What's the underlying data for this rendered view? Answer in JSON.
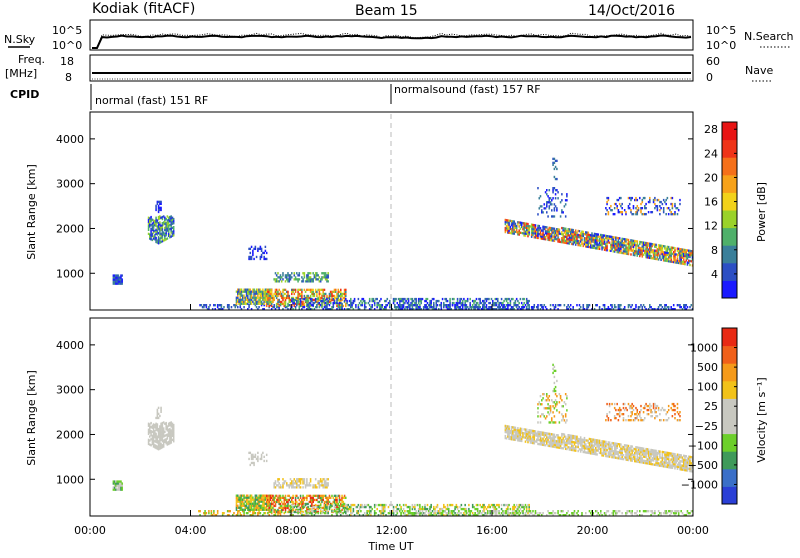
{
  "header": {
    "title": "Kodiak (fitACF)",
    "beam": "Beam 15",
    "date": "14/Oct/2016"
  },
  "noise_panel": {
    "left_label": "N.Sky",
    "left_ticks": [
      "10^5",
      "10^0"
    ],
    "right_label": "N.Search",
    "right_ticks": [
      "10^5",
      "10^0"
    ]
  },
  "freq_panel": {
    "left_label_1": "Freq.",
    "left_label_2": "[MHz]",
    "left_ticks": [
      "18",
      "8"
    ],
    "right_label": "Nave",
    "right_ticks": [
      "60",
      "0"
    ]
  },
  "cpid": {
    "label": "CPID",
    "segments": [
      {
        "text": "normal (fast) 151 RF",
        "start_hour": 0
      },
      {
        "text": "normalsound (fast) 157 RF",
        "start_hour": 12
      }
    ]
  },
  "chart_data": [
    {
      "type": "heatmap",
      "name": "power",
      "ylabel": "Slant Range [km]",
      "xlabel": "",
      "ylim": [
        180,
        4600
      ],
      "yticks": [
        "1000",
        "2000",
        "3000",
        "4000"
      ],
      "colorbar_label": "Power [dB]",
      "colorbar_ticks": [
        "4",
        "8",
        "12",
        "16",
        "20",
        "24",
        "28"
      ],
      "colors": [
        "#1a1aff",
        "#2c4fc4",
        "#3a7f9a",
        "#4fb06a",
        "#9ad22a",
        "#f2d21a",
        "#f7a21a",
        "#f5701a",
        "#ef3418",
        "#e81414"
      ]
    },
    {
      "type": "heatmap",
      "name": "velocity",
      "ylabel": "Slant Range [km]",
      "xlabel": "Time UT",
      "ylim": [
        180,
        4600
      ],
      "yticks": [
        "1000",
        "2000",
        "3000",
        "4000"
      ],
      "colorbar_label": "Velocity [m s⁻¹]",
      "colorbar_ticks": [
        "1000",
        "500",
        "100",
        "25",
        "−25",
        "−100",
        "−500",
        "−1000"
      ],
      "colors": [
        "#2a3fd6",
        "#3a6fc8",
        "#3f9a5a",
        "#6ccf2a",
        "#c8c8c0",
        "#c8c8c0",
        "#f2c21a",
        "#f59a1a",
        "#f0601a",
        "#e82a14"
      ]
    }
  ],
  "x_axis": {
    "ticks": [
      "00:00",
      "04:00",
      "08:00",
      "12:00",
      "16:00",
      "20:00",
      "00:00"
    ]
  },
  "style": {
    "axis": "#000000",
    "dashed_line": "#bbbbbb"
  }
}
